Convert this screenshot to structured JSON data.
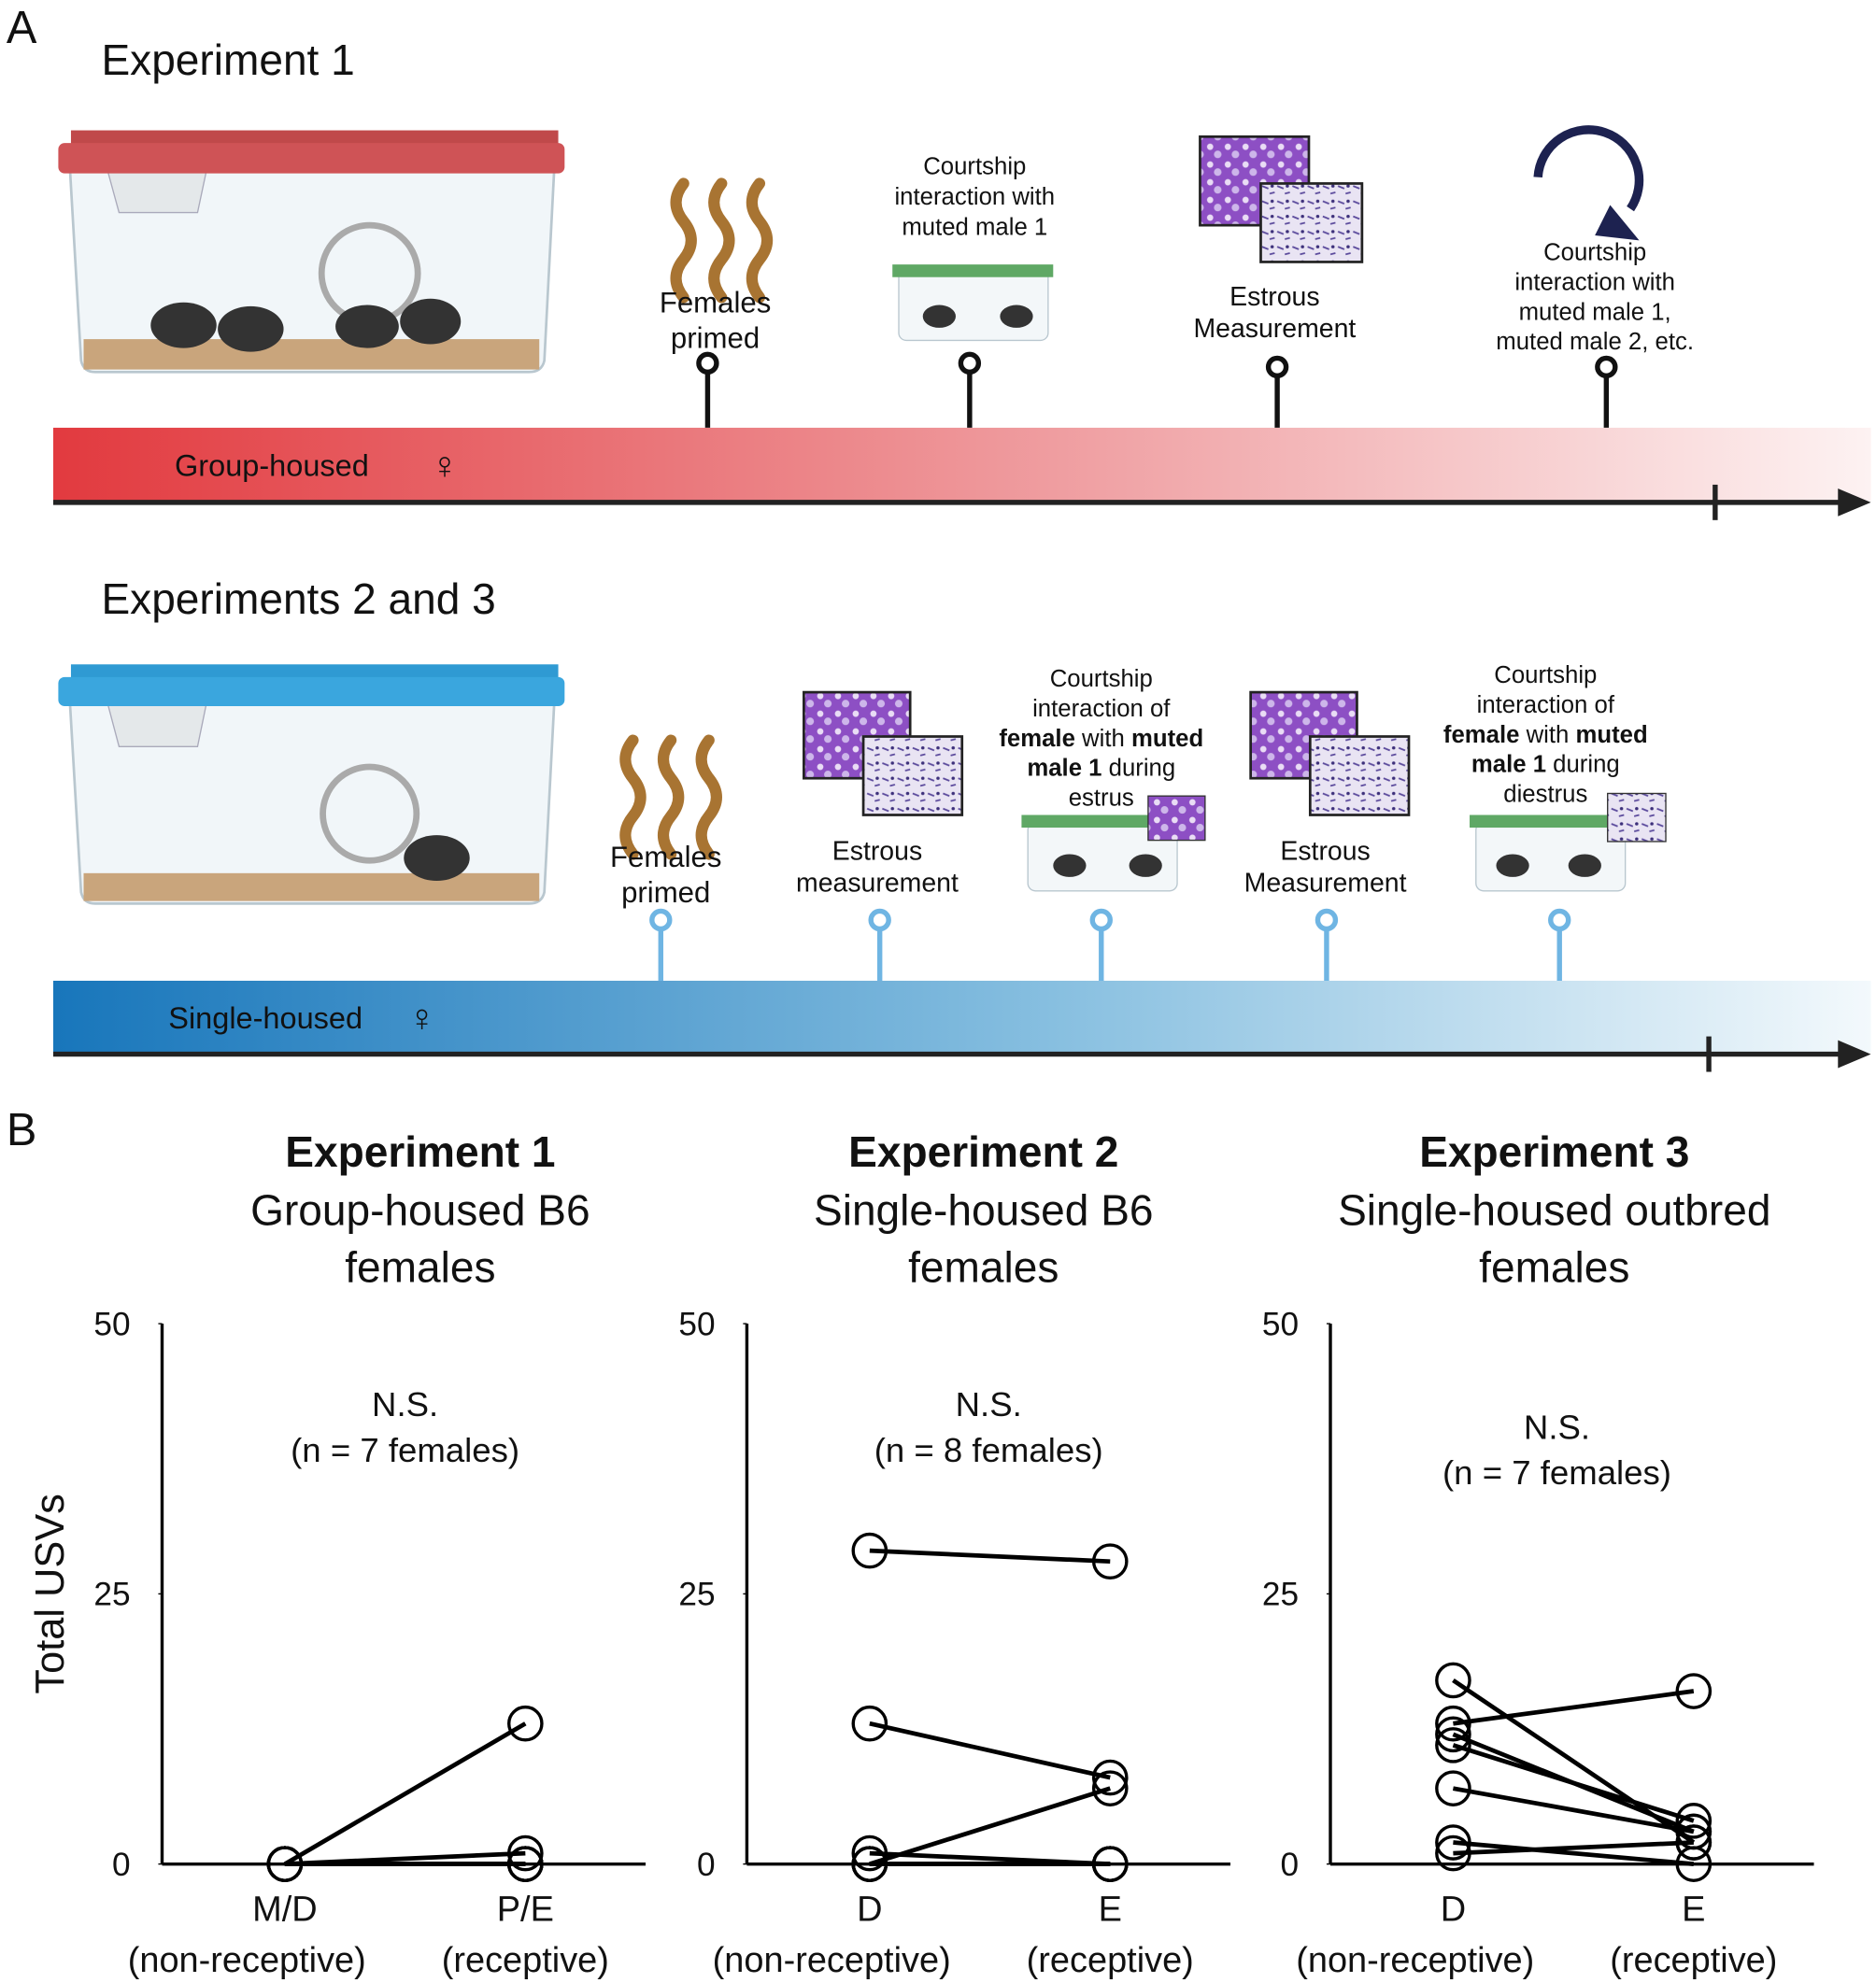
{
  "panel_a": {
    "label": "A",
    "timelines": [
      {
        "title": "Experiment 1",
        "bar_label": "Group-housed",
        "bar_symbol": "♀",
        "events": [
          {
            "lines": [
              "Females",
              "primed"
            ]
          },
          {
            "lines": [
              "Courtship",
              "interaction with",
              "muted male 1"
            ]
          },
          {
            "lines": [
              "Estrous",
              "Measurement"
            ]
          },
          {
            "lines": [
              "Courtship",
              "interaction with",
              "muted male 1,",
              "muted male 2, etc."
            ]
          }
        ]
      },
      {
        "title": "Experiments 2 and 3",
        "bar_label": "Single-housed",
        "bar_symbol": "♀",
        "events": [
          {
            "lines": [
              "Females",
              "primed"
            ]
          },
          {
            "lines": [
              "Estrous",
              "measurement"
            ]
          },
          {
            "lines": [
              "Courtship",
              "interaction of",
              [
                {
                  "bold": "female"
                },
                " with ",
                {
                  "bold": "muted"
                }
              ],
              [
                {
                  "bold": "male 1"
                },
                " during"
              ],
              "estrus"
            ]
          },
          {
            "lines": [
              "Estrous",
              "Measurement"
            ]
          },
          {
            "lines": [
              "Courtship",
              "interaction of",
              [
                {
                  "bold": "female"
                },
                " with ",
                {
                  "bold": "muted"
                }
              ],
              [
                {
                  "bold": "male 1"
                },
                " during"
              ],
              "diestrus"
            ]
          }
        ]
      }
    ]
  },
  "panel_b_label": "B",
  "chart_data": [
    {
      "type": "line",
      "title": "Experiment 1",
      "subtitle": [
        "Group-housed B6",
        "females"
      ],
      "annotation": [
        "N.S.",
        "(n = 7 females)"
      ],
      "ylabel": "Total USVs",
      "categories": [
        "M/D",
        "P/E"
      ],
      "category_notes": [
        "(non-receptive)",
        "(receptive)"
      ],
      "ylim": [
        0,
        50
      ],
      "yticks": [
        0,
        25,
        50
      ],
      "series": [
        {
          "color": "#000000",
          "values": [
            0,
            13
          ]
        },
        {
          "color": "#000000",
          "values": [
            0,
            1
          ]
        },
        {
          "color": "#000000",
          "values": [
            0,
            0
          ]
        },
        {
          "color": "#000000",
          "values": [
            0,
            0
          ]
        },
        {
          "color": "#000000",
          "values": [
            0,
            0
          ]
        },
        {
          "color": "#000000",
          "values": [
            0,
            0
          ]
        },
        {
          "color": "#000000",
          "values": [
            0,
            0
          ]
        }
      ]
    },
    {
      "type": "line",
      "title": "Experiment 2",
      "subtitle": [
        "Single-housed B6",
        "females"
      ],
      "annotation": [
        "N.S.",
        "(n = 8 females)"
      ],
      "categories": [
        "D",
        "E"
      ],
      "category_notes": [
        "(non-receptive)",
        "(receptive)"
      ],
      "ylim": [
        0,
        50
      ],
      "yticks": [
        0,
        25,
        50
      ],
      "series": [
        {
          "color": "#000000",
          "values": [
            29,
            28
          ]
        },
        {
          "color": "#000000",
          "values": [
            13,
            8
          ]
        },
        {
          "color": "#000000",
          "values": [
            0,
            7
          ]
        },
        {
          "color": "#000000",
          "values": [
            1,
            0
          ]
        },
        {
          "color": "#000000",
          "values": [
            0,
            0
          ]
        },
        {
          "color": "#000000",
          "values": [
            0,
            0
          ]
        },
        {
          "color": "#000000",
          "values": [
            0,
            0
          ]
        },
        {
          "color": "#000000",
          "values": [
            0,
            0
          ]
        }
      ]
    },
    {
      "type": "line",
      "title": "Experiment 3",
      "subtitle": [
        "Single-housed outbred",
        "females"
      ],
      "annotation": [
        "N.S.",
        "(n = 7 females)"
      ],
      "categories": [
        "D",
        "E"
      ],
      "category_notes": [
        "(non-receptive)",
        "(receptive)"
      ],
      "ylim": [
        0,
        50
      ],
      "yticks": [
        0,
        25,
        50
      ],
      "series": [
        {
          "color": "#000000",
          "values": [
            13,
            16
          ]
        },
        {
          "color": "#000000",
          "values": [
            17,
            2
          ]
        },
        {
          "color": "#000000",
          "values": [
            11,
            4
          ]
        },
        {
          "color": "#000000",
          "values": [
            12,
            3
          ]
        },
        {
          "color": "#000000",
          "values": [
            7,
            3
          ]
        },
        {
          "color": "#000000",
          "values": [
            2,
            0
          ]
        },
        {
          "color": "#000000",
          "values": [
            1,
            2
          ]
        }
      ]
    }
  ]
}
